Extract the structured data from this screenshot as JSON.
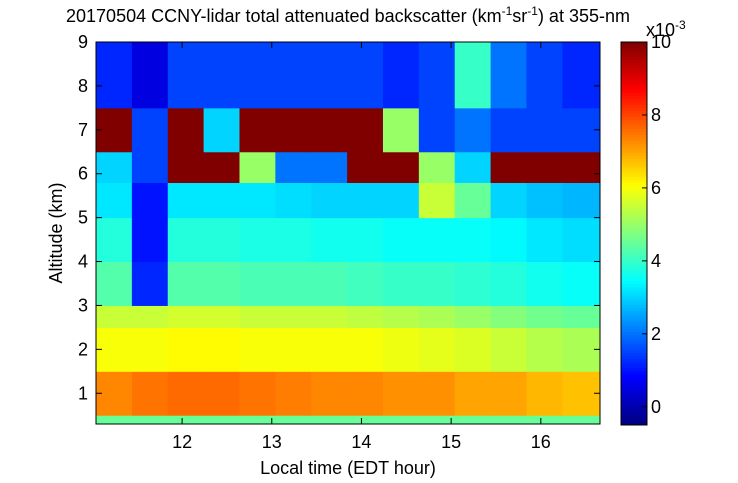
{
  "chart_data": {
    "type": "heatmap",
    "title_parts": [
      "20170504 CCNY-lidar total attenuated backscatter (km",
      "-1",
      "sr",
      "-1",
      ") at 355-nm"
    ],
    "x_label": "Local time (EDT hour)",
    "y_label": "Altitude (km)",
    "colorbar_label": "x10",
    "colorbar_exponent": "-3",
    "colormap": "jet",
    "xlim": [
      11.04,
      16.66
    ],
    "xticks": [
      12,
      13,
      14,
      15,
      16
    ],
    "ylim": [
      0.3,
      9
    ],
    "yticks": [
      1,
      2,
      3,
      4,
      5,
      6,
      7,
      8,
      9
    ],
    "clim": [
      -0.5,
      10
    ],
    "cticks": [
      0,
      2,
      4,
      6,
      8,
      10
    ],
    "x_edges": [
      11.04,
      11.44,
      11.84,
      12.24,
      12.64,
      13.04,
      13.44,
      13.84,
      14.24,
      14.64,
      15.04,
      15.44,
      15.84,
      16.24,
      16.66
    ],
    "y_edges": [
      0.3,
      0.5,
      1.5,
      2.5,
      3,
      4,
      5,
      5.8,
      6.5,
      7.5,
      9
    ],
    "z": [
      [
        4.5,
        4.5,
        4.5,
        4.5,
        4.5,
        4.5,
        4.5,
        4.5,
        4.5,
        4.5,
        4.5,
        4.5,
        4.5,
        4.5
      ],
      [
        7.3,
        7.5,
        7.6,
        7.6,
        7.5,
        7.4,
        7.3,
        7.3,
        7.2,
        7.2,
        7,
        7,
        6.8,
        6.7
      ],
      [
        6,
        6,
        6.1,
        6.1,
        6,
        6,
        6,
        6,
        5.9,
        5.8,
        5.7,
        5.5,
        5.3,
        5.2
      ],
      [
        5.5,
        5.5,
        5.6,
        5.6,
        5.5,
        5.5,
        5.5,
        5.4,
        5.3,
        5.2,
        5,
        4.8,
        4.6,
        4.5
      ],
      [
        4.3,
        1.2,
        4.3,
        4.3,
        4.2,
        4.2,
        4.2,
        4.1,
        4,
        4,
        3.9,
        3.8,
        3.6,
        3.5
      ],
      [
        3.8,
        1,
        3.8,
        3.8,
        3.7,
        3.7,
        3.6,
        3.6,
        3.5,
        3.5,
        3.5,
        3.4,
        3.2,
        3.1
      ],
      [
        3.2,
        1,
        3.2,
        3.2,
        3.2,
        3.1,
        3,
        3,
        3,
        5.5,
        4.5,
        3,
        2.8,
        2.7
      ],
      [
        3,
        1.5,
        10,
        10,
        5,
        2,
        2,
        10,
        10,
        5,
        3,
        10,
        10,
        10
      ],
      [
        10,
        1.5,
        10,
        3,
        10,
        10,
        10,
        10,
        5,
        1.5,
        2,
        1.5,
        1.5,
        1.5
      ],
      [
        1.2,
        0.5,
        1.5,
        1.5,
        1.5,
        1.5,
        1.5,
        1.5,
        1.2,
        1.5,
        4,
        2,
        1.5,
        1.2
      ]
    ]
  }
}
